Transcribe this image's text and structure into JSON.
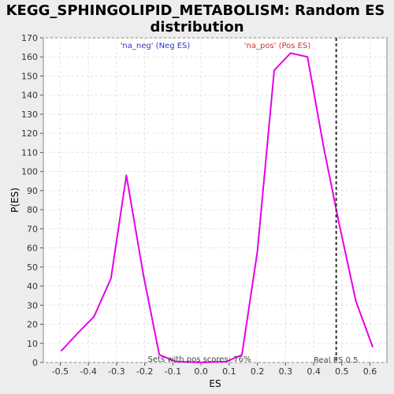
{
  "chart_data": {
    "type": "line",
    "title_line1": "KEGG_SPHINGOLIPID_METABOLISM: Random ES",
    "title_line2": "distribution",
    "xlabel": "ES",
    "ylabel": "P(ES)",
    "xlim": [
      -0.56,
      0.66
    ],
    "ylim": [
      0,
      170
    ],
    "xticks": [
      -0.5,
      -0.4,
      -0.3,
      -0.2,
      -0.1,
      0.0,
      0.1,
      0.2,
      0.3,
      0.4,
      0.5,
      0.6
    ],
    "xtick_labels": [
      "-0.5",
      "-0.4",
      "-0.3",
      "-0.2",
      "-0.1",
      "0.0",
      "0.1",
      "0.2",
      "0.3",
      "0.4",
      "0.5",
      "0.6"
    ],
    "yticks": [
      0,
      10,
      20,
      30,
      40,
      50,
      60,
      70,
      80,
      90,
      100,
      110,
      120,
      130,
      140,
      150,
      160,
      170
    ],
    "grid": true,
    "series": [
      {
        "color": "#e600e6",
        "x": [
          -0.497,
          -0.44,
          -0.38,
          -0.32,
          -0.265,
          -0.205,
          -0.148,
          -0.09,
          0.0,
          0.09,
          0.145,
          0.2,
          0.26,
          0.318,
          0.378,
          0.435,
          0.49,
          0.55,
          0.61
        ],
        "y": [
          6,
          15,
          24,
          44,
          98,
          46,
          4,
          0.5,
          0,
          0.5,
          4,
          58,
          153,
          162,
          160,
          113,
          73,
          32,
          8
        ]
      }
    ],
    "real_es": {
      "x": 0.48,
      "label": "Real ES 0.5"
    },
    "annotations": {
      "neg": {
        "text": "'na_neg' (Neg ES)",
        "color": "#3333cc"
      },
      "pos": {
        "text": "'na_pos' (Pos ES)",
        "color": "#cc3333"
      },
      "sets": {
        "text": "Sets with pos scores: 76%"
      }
    },
    "colors": {
      "plot_bg": "#ffffff",
      "page_bg": "#ededed",
      "grid": "#e2e2e2",
      "line": "#e600e6"
    }
  }
}
